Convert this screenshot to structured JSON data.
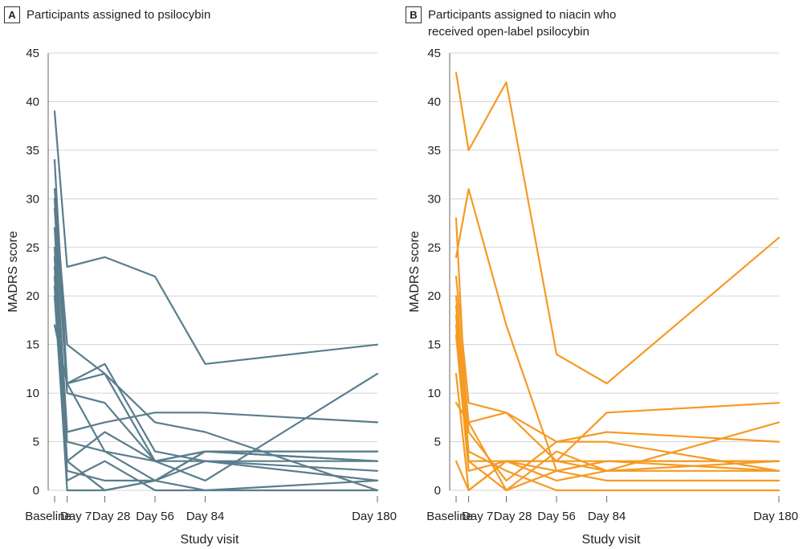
{
  "panels": [
    {
      "letter": "A",
      "title_lines": [
        "Participants assigned to psilocybin"
      ],
      "color": "#5a7d8c"
    },
    {
      "letter": "B",
      "title_lines": [
        "Participants assigned to niacin who",
        "received open-label psilocybin"
      ],
      "color": "#f59a23"
    }
  ],
  "chart_data": [
    {
      "type": "line",
      "title": "Participants assigned to psilocybin",
      "xlabel": "Study visit",
      "ylabel": "MADRS score",
      "x_days": [
        0,
        7,
        28,
        56,
        84,
        180
      ],
      "categories": [
        "Baseline",
        "Day 7",
        "Day 28",
        "Day 56",
        "Day 84",
        "Day 180"
      ],
      "ylim": [
        0,
        45
      ],
      "yticks": [
        0,
        5,
        10,
        15,
        20,
        25,
        30,
        35,
        40,
        45
      ],
      "grid": true,
      "series": [
        {
          "name": "P1",
          "values": [
            39,
            23,
            24,
            22,
            13,
            15
          ]
        },
        {
          "name": "P2",
          "values": [
            34,
            11,
            13,
            4,
            3,
            3
          ]
        },
        {
          "name": "P3",
          "values": [
            31,
            15,
            12,
            3,
            4,
            4
          ]
        },
        {
          "name": "P4",
          "values": [
            30,
            11,
            12,
            7,
            6,
            0
          ]
        },
        {
          "name": "P5",
          "values": [
            29,
            10,
            9,
            3,
            4,
            3
          ]
        },
        {
          "name": "P6",
          "values": [
            27,
            6,
            7,
            8,
            8,
            7
          ]
        },
        {
          "name": "P7",
          "values": [
            25,
            5,
            4,
            3,
            3,
            2
          ]
        },
        {
          "name": "P8",
          "values": [
            24,
            3,
            6,
            3,
            1,
            12
          ]
        },
        {
          "name": "P9",
          "values": [
            23,
            3,
            0,
            1,
            4,
            4
          ]
        },
        {
          "name": "P10",
          "values": [
            22,
            2,
            1,
            1,
            0,
            1
          ]
        },
        {
          "name": "P11",
          "values": [
            21,
            0,
            0,
            1,
            3,
            1
          ]
        },
        {
          "name": "P12",
          "values": [
            20,
            1,
            3,
            0,
            0,
            0
          ]
        },
        {
          "name": "P13",
          "values": [
            17,
            11,
            4,
            1,
            4,
            3
          ]
        }
      ]
    },
    {
      "type": "line",
      "title": "Participants assigned to niacin who received open-label psilocybin",
      "xlabel": "Study visit",
      "ylabel": "MADRS score",
      "x_days": [
        0,
        7,
        28,
        56,
        84,
        180
      ],
      "categories": [
        "Baseline",
        "Day 7",
        "Day 28",
        "Day 56",
        "Day 84",
        "Day 180"
      ],
      "ylim": [
        0,
        45
      ],
      "yticks": [
        0,
        5,
        10,
        15,
        20,
        25,
        30,
        35,
        40,
        45
      ],
      "grid": true,
      "series": [
        {
          "name": "N1",
          "values": [
            43,
            35,
            42,
            14,
            11,
            26
          ]
        },
        {
          "name": "N2",
          "values": [
            28,
            3,
            3,
            3,
            3,
            2
          ]
        },
        {
          "name": "N3",
          "values": [
            24,
            31,
            17,
            2,
            3,
            3
          ]
        },
        {
          "name": "N4",
          "values": [
            22,
            9,
            8,
            5,
            5,
            2
          ]
        },
        {
          "name": "N5",
          "values": [
            20,
            7,
            8,
            3,
            8,
            9
          ]
        },
        {
          "name": "N6",
          "values": [
            19,
            6,
            1,
            5,
            6,
            5
          ]
        },
        {
          "name": "N7",
          "values": [
            18,
            4,
            2,
            0,
            0,
            0
          ]
        },
        {
          "name": "N8",
          "values": [
            17,
            3,
            0,
            4,
            2,
            2
          ]
        },
        {
          "name": "N9",
          "values": [
            16,
            2,
            3,
            2,
            3,
            3
          ]
        },
        {
          "name": "N10",
          "values": [
            12,
            0,
            3,
            1,
            2,
            7
          ]
        },
        {
          "name": "N11",
          "values": [
            9,
            7,
            0,
            2,
            1,
            1
          ]
        },
        {
          "name": "N12",
          "values": [
            3,
            0,
            3,
            3,
            2,
            3
          ]
        }
      ]
    }
  ]
}
